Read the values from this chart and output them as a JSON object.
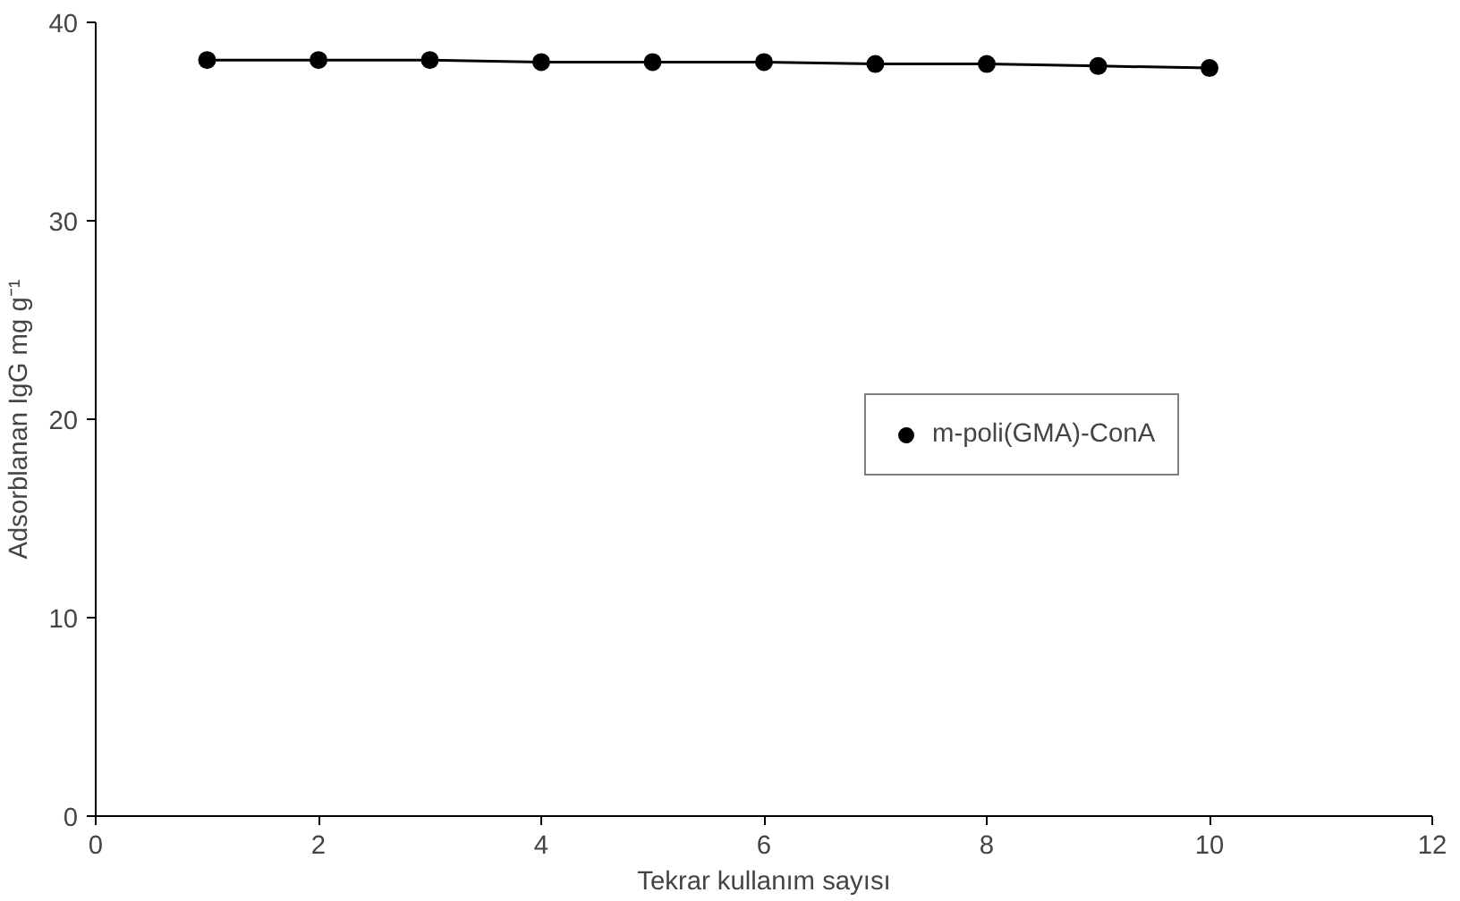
{
  "chart_data": {
    "type": "line",
    "xlabel": "Tekrar kullanım sayısı",
    "ylabel": "Adsorblanan IgG mg g⁻¹",
    "x": [
      1,
      2,
      3,
      4,
      5,
      6,
      7,
      8,
      9,
      10
    ],
    "series": [
      {
        "name": "m-poli(GMA)-ConA",
        "color": "#000000",
        "values": [
          38.1,
          38.1,
          38.1,
          38.0,
          38.0,
          38.0,
          37.9,
          37.9,
          37.8,
          37.7
        ]
      }
    ],
    "xlim": [
      0,
      12
    ],
    "xticks": [
      0,
      2,
      4,
      6,
      8,
      10,
      12
    ],
    "ylim": [
      0,
      40
    ],
    "yticks": [
      0,
      10,
      20,
      30,
      40
    ],
    "grid": false,
    "legend": "right",
    "marker": "circle",
    "line_style": "solid"
  }
}
